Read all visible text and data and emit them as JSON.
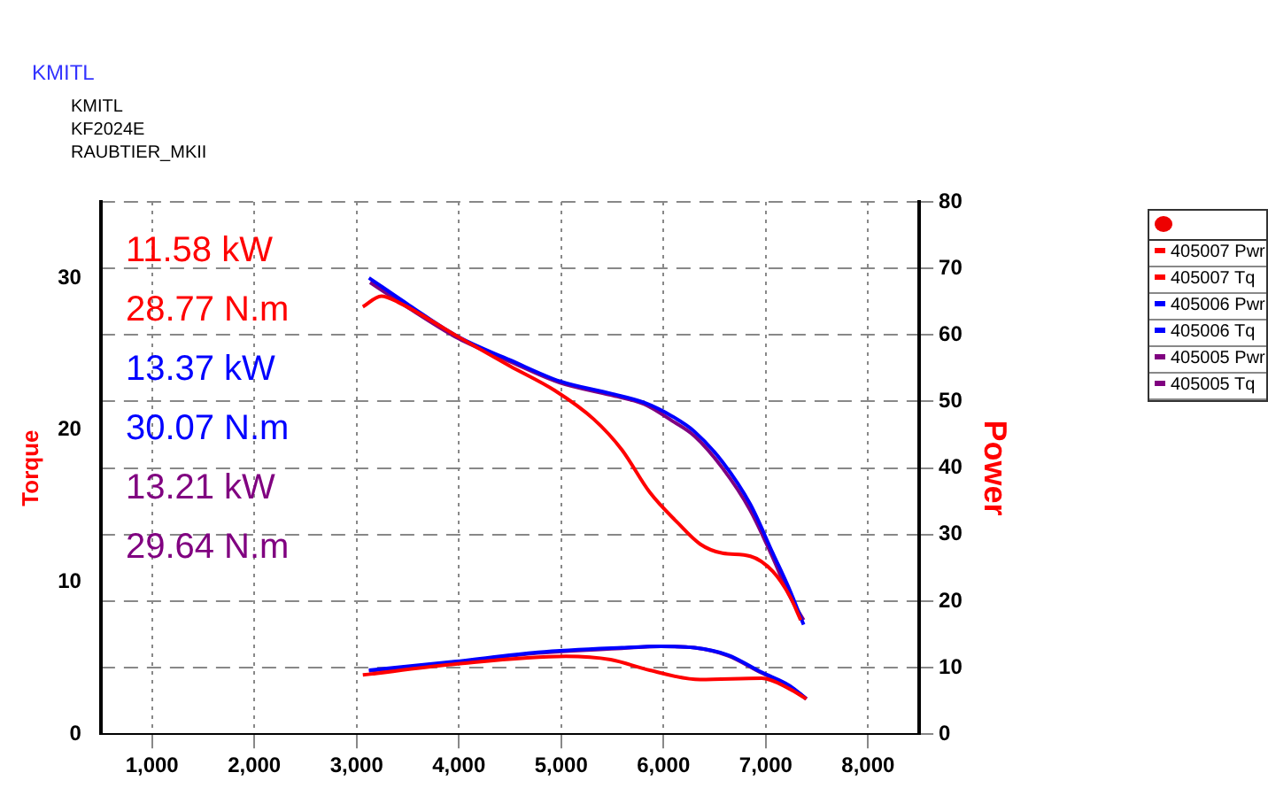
{
  "chart_data": {
    "type": "line",
    "title": "KMITL",
    "ylabel": "Torque",
    "y2label": "Power",
    "annotations": [
      "KMITL",
      "KF2024E",
      "RAUBTIER_MKII",
      "11.58 kW",
      "28.77 N.m",
      "13.37 kW",
      "30.07 N.m",
      "13.21 kW",
      "29.64 N.m"
    ],
    "xlim": [
      500,
      8500
    ],
    "xticks": [
      {
        "value": 1000,
        "label": "1,000"
      },
      {
        "value": 2000,
        "label": "2,000"
      },
      {
        "value": 3000,
        "label": "3,000"
      },
      {
        "value": 4000,
        "label": "4,000"
      },
      {
        "value": 5000,
        "label": "5,000"
      },
      {
        "value": 6000,
        "label": "6,000"
      },
      {
        "value": 7000,
        "label": "7,000"
      },
      {
        "value": 8000,
        "label": "8,000"
      }
    ],
    "ylim": [
      0,
      35
    ],
    "yticks": [
      0,
      10,
      20,
      30
    ],
    "y2lim": [
      0,
      80
    ],
    "y2ticks": [
      0,
      10,
      20,
      30,
      40,
      50,
      60,
      70,
      80
    ],
    "grid": true,
    "legend": "right",
    "marker": "none",
    "line_style": "solid",
    "series": [
      {
        "name": "405007 Pwr",
        "color": "#ff0000",
        "axis": "y2",
        "x": [
          3061,
          3952,
          5046,
          5483,
          5866,
          6358,
          6960,
          7233,
          7397
        ],
        "values": [
          8.9,
          10.5,
          11.7,
          11.2,
          9.6,
          8.2,
          8.4,
          6.8,
          5.3
        ]
      },
      {
        "name": "405007 Tq",
        "color": "#ff0000",
        "x": [
          3061,
          3242,
          3406,
          4000,
          4500,
          4937,
          5320,
          5593,
          5866,
          6139,
          6358,
          6577,
          6850,
          7069,
          7233,
          7342
        ],
        "values": [
          28.1,
          28.8,
          28.4,
          26.1,
          24.2,
          22.6,
          20.7,
          18.7,
          15.9,
          13.9,
          12.5,
          11.9,
          11.7,
          10.7,
          9.1,
          7.5
        ]
      },
      {
        "name": "405006 Pwr",
        "color": "#0000ff",
        "axis": "y2",
        "x": [
          3121,
          3952,
          4773,
          5593,
          5975,
          6303,
          6631,
          6960,
          7233,
          7397
        ],
        "values": [
          9.6,
          10.9,
          12.3,
          13.0,
          13.2,
          13.0,
          11.9,
          9.3,
          7.3,
          5.3
        ]
      },
      {
        "name": "405006 Tq",
        "color": "#0000ff",
        "x": [
          3121,
          3515,
          4000,
          4500,
          4990,
          5483,
          5811,
          6085,
          6303,
          6577,
          6850,
          7069,
          7233,
          7370
        ],
        "values": [
          30.0,
          28.2,
          26.1,
          24.6,
          23.2,
          22.4,
          21.8,
          20.9,
          19.9,
          17.9,
          15.1,
          11.9,
          9.5,
          7.2
        ]
      },
      {
        "name": "405005 Pwr",
        "color": "#800080",
        "axis": "y2",
        "x": [
          3121,
          3952,
          4773,
          5593,
          5975,
          6303,
          6631,
          6960,
          7233,
          7397
        ],
        "values": [
          9.5,
          10.8,
          12.2,
          12.9,
          13.2,
          13.0,
          11.8,
          9.2,
          7.2,
          5.3
        ]
      },
      {
        "name": "405005 Tq",
        "color": "#800080",
        "x": [
          3132,
          3515,
          4000,
          4500,
          4990,
          5483,
          5811,
          6085,
          6303,
          6577,
          6850,
          7069,
          7233,
          7370
        ],
        "values": [
          29.7,
          28.0,
          26.0,
          24.5,
          23.1,
          22.3,
          21.7,
          20.6,
          19.6,
          17.5,
          14.7,
          11.6,
          9.1,
          7.5
        ]
      }
    ]
  }
}
